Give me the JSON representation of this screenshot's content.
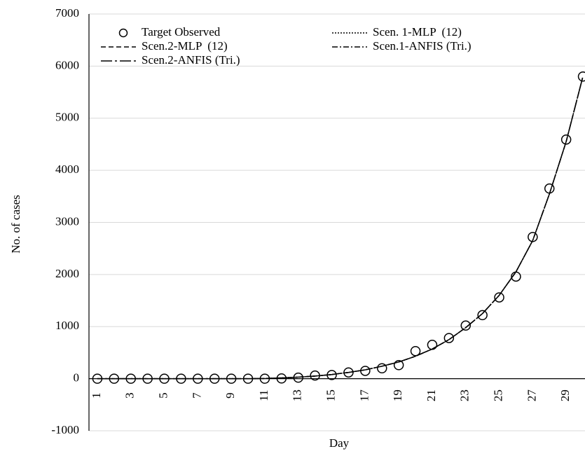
{
  "chart_data": {
    "type": "line",
    "x_label": "Day",
    "y_label": "No. of cases",
    "categories": [
      "1",
      null,
      "3",
      null,
      "5",
      null,
      "7",
      null,
      "9",
      null,
      "11",
      null,
      "13",
      null,
      "15",
      null,
      "17",
      null,
      "19",
      null,
      "21",
      null,
      "23",
      null,
      "25",
      null,
      "27",
      null,
      "29",
      null
    ],
    "series": [
      {
        "name": "Target Observed",
        "color": "#000000",
        "marker": "circle",
        "values": [
          0,
          0,
          0,
          0,
          0,
          0,
          0,
          0,
          0,
          0,
          0,
          5,
          20,
          60,
          70,
          120,
          150,
          200,
          260,
          530,
          650,
          780,
          1020,
          1220,
          1560,
          1960,
          2720,
          3650,
          4590,
          5800
        ]
      },
      {
        "name": "Scen. 1-MLP  (12)",
        "color": "#000000",
        "dash": "2 2",
        "values": [
          0,
          0,
          0,
          0,
          0,
          0,
          0,
          0,
          0,
          0,
          5,
          15,
          30,
          50,
          80,
          120,
          170,
          240,
          320,
          430,
          570,
          750,
          980,
          1250,
          1600,
          2050,
          2650,
          3550,
          4550,
          5800
        ]
      },
      {
        "name": "Scen.2-MLP  (12)",
        "color": "#000000",
        "dash": "7 4",
        "values": [
          0,
          0,
          0,
          0,
          0,
          0,
          0,
          0,
          0,
          0,
          5,
          15,
          30,
          50,
          80,
          120,
          170,
          240,
          320,
          430,
          570,
          750,
          980,
          1250,
          1600,
          2050,
          2650,
          3550,
          4550,
          5800
        ]
      },
      {
        "name": "Scen.1-ANFIS (Tri.)",
        "color": "#000000",
        "dash": "8 3 2 3",
        "values": [
          0,
          0,
          0,
          0,
          0,
          0,
          0,
          0,
          0,
          0,
          5,
          15,
          30,
          50,
          80,
          120,
          170,
          240,
          320,
          430,
          570,
          750,
          980,
          1250,
          1600,
          2050,
          2650,
          3550,
          4550,
          5800
        ]
      },
      {
        "name": "Scen.2-ANFIS (Tri.)",
        "color": "#000000",
        "dash": "16 4 3 4",
        "values": [
          0,
          0,
          0,
          0,
          0,
          0,
          0,
          0,
          0,
          0,
          5,
          15,
          30,
          50,
          80,
          120,
          170,
          240,
          320,
          430,
          570,
          750,
          980,
          1250,
          1600,
          2050,
          2650,
          3550,
          4550,
          5800
        ]
      }
    ],
    "ylim": [
      -1000,
      7000
    ],
    "yticks": [
      -1000,
      0,
      1000,
      2000,
      3000,
      4000,
      5000,
      6000,
      7000
    ],
    "grid": true
  }
}
